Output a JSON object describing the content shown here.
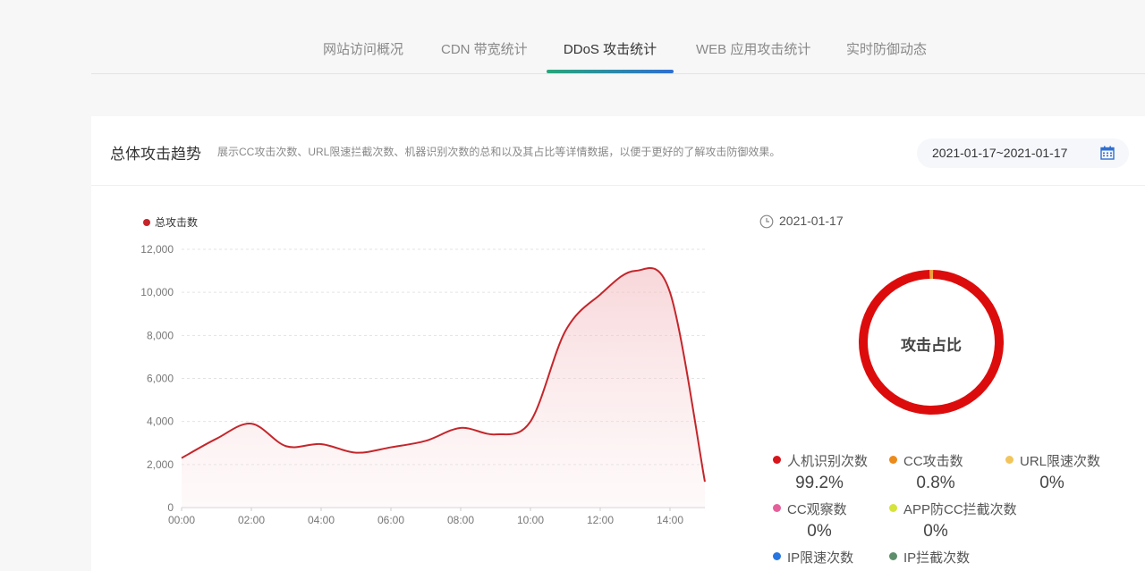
{
  "tabs": [
    {
      "label": "网站访问概况",
      "active": false
    },
    {
      "label": "CDN 带宽统计",
      "active": false
    },
    {
      "label": "DDoS 攻击统计",
      "active": true
    },
    {
      "label": "WEB 应用攻击统计",
      "active": false
    },
    {
      "label": "实时防御动态",
      "active": false
    }
  ],
  "section": {
    "title": "总体攻击趋势",
    "description": "展示CC攻击次数、URL限速拦截次数、机器识别次数的总和以及其占比等详情数据，以便于更好的了解攻击防御效果。",
    "date_range": "2021-01-17~2021-01-17",
    "calendar_icon": "calendar-icon"
  },
  "chart_data": {
    "type": "area",
    "series": [
      {
        "name": "总攻击数",
        "color": "#c4262b",
        "values": [
          2300,
          3200,
          3900,
          2850,
          2950,
          2550,
          2800,
          3100,
          3700,
          3400,
          4000,
          8200,
          9900,
          11000,
          10000,
          1200
        ]
      }
    ],
    "x": [
      "00:00",
      "01:00",
      "02:00",
      "03:00",
      "04:00",
      "05:00",
      "06:00",
      "07:00",
      "08:00",
      "09:00",
      "10:00",
      "11:00",
      "12:00",
      "13:00",
      "14:00",
      "15:00"
    ],
    "xticks": [
      "00:00",
      "02:00",
      "04:00",
      "06:00",
      "08:00",
      "10:00",
      "12:00",
      "14:00"
    ],
    "yticks": [
      "0",
      "2,000",
      "4,000",
      "6,000",
      "8,000",
      "10,000",
      "12,000"
    ],
    "ylim": [
      0,
      12000
    ],
    "legend": "top-left",
    "grid": true
  },
  "side": {
    "date": "2021-01-17",
    "clock_icon": "clock-icon",
    "donut_title": "攻击占比",
    "donut": [
      {
        "name": "人机识别次数",
        "value": 99.2,
        "color": "#dd0c0c"
      },
      {
        "name": "CC攻击数",
        "value": 0.8,
        "color": "#f0a13a"
      }
    ]
  },
  "legend_items": [
    {
      "name": "人机识别次数",
      "pct": "99.2%",
      "color": "#d7151b"
    },
    {
      "name": "CC攻击数",
      "pct": "0.8%",
      "color": "#ec8b1b"
    },
    {
      "name": "URL限速次数",
      "pct": "0%",
      "color": "#f2c55c"
    },
    {
      "name": "CC观察数",
      "pct": "0%",
      "color": "#e5609a"
    },
    {
      "name": "APP防CC拦截次数",
      "pct": "0%",
      "color": "#d6e33a"
    },
    {
      "name": "IP限速次数",
      "pct": "",
      "color": "#2775e0"
    },
    {
      "name": "IP拦截次数",
      "pct": "",
      "color": "#5e8f6c"
    }
  ]
}
